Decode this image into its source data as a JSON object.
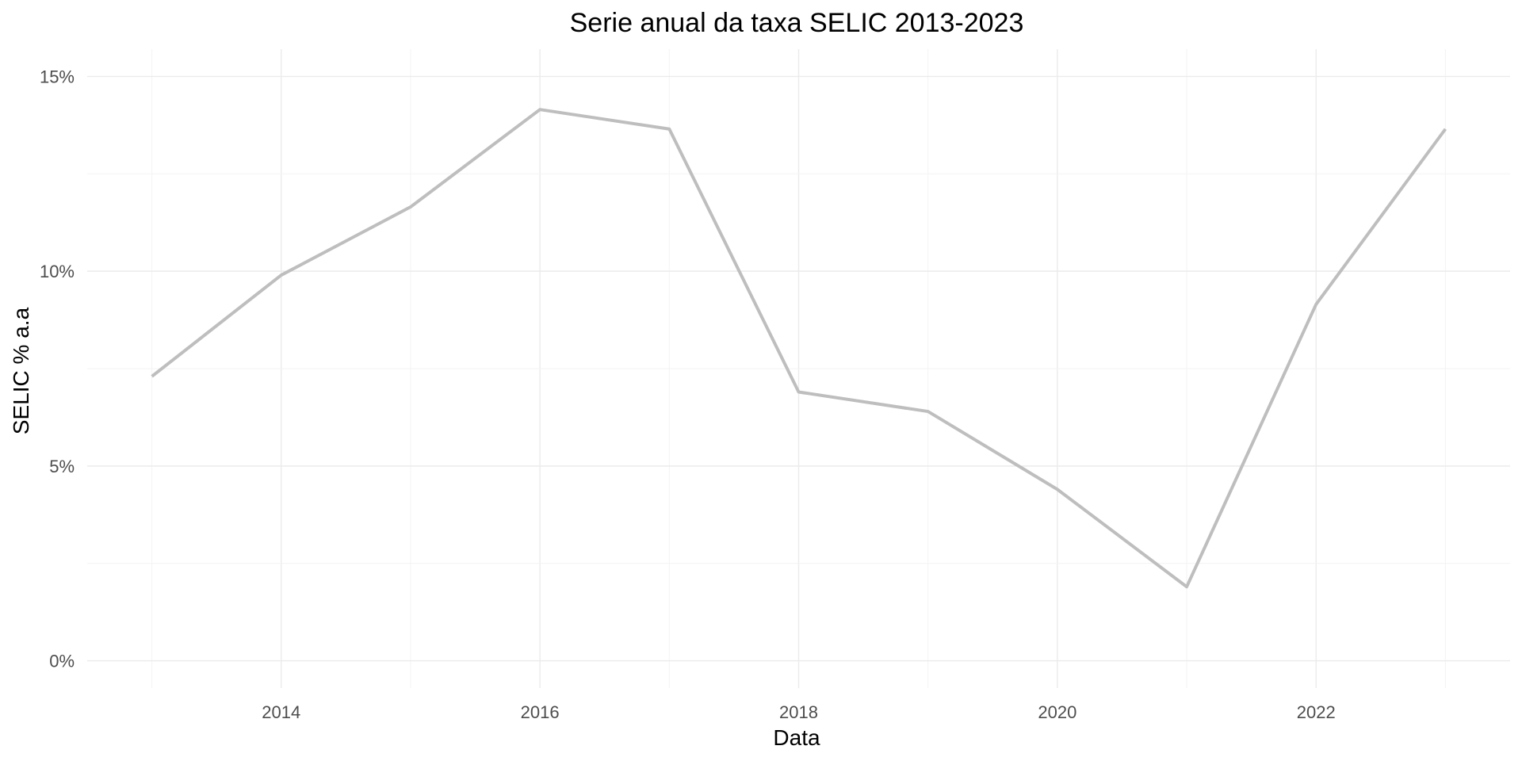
{
  "chart_data": {
    "type": "line",
    "title": "Serie anual da taxa SELIC 2013-2023",
    "xlabel": "Data",
    "ylabel": "SELIC % a.a",
    "x": [
      2013,
      2014,
      2015,
      2016,
      2017,
      2018,
      2019,
      2020,
      2021,
      2022,
      2023
    ],
    "series": [
      {
        "values": [
          7.3,
          9.9,
          11.65,
          14.15,
          13.65,
          6.9,
          6.4,
          4.4,
          1.9,
          9.15,
          13.65
        ]
      }
    ],
    "x_ticks": [
      2014,
      2016,
      2018,
      2020,
      2022
    ],
    "x_tick_labels": [
      "2014",
      "2016",
      "2018",
      "2020",
      "2022"
    ],
    "y_ticks": [
      0,
      5,
      10,
      15
    ],
    "y_tick_labels": [
      "0%",
      "5%",
      "10%",
      "15%"
    ],
    "xlim": [
      2012.5,
      2023.5
    ],
    "ylim": [
      -0.7,
      15.7
    ],
    "grid": true,
    "legend": "none",
    "colors": {
      "line": "#bebebe"
    }
  }
}
